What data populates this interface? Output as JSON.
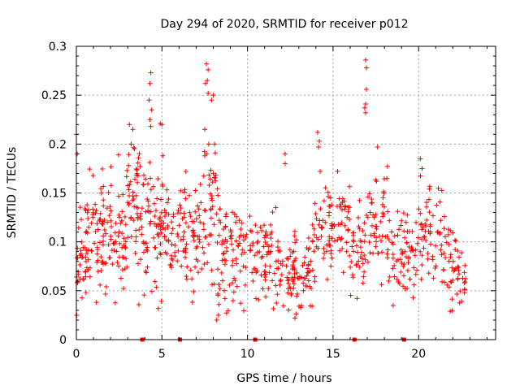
{
  "chart_data": {
    "type": "scatter",
    "title": "Day 294 of 2020, SRMTID for receiver p012",
    "xlabel": "GPS time / hours",
    "ylabel": "SRMTID / TECUs",
    "xlim": [
      0,
      24.5
    ],
    "ylim": [
      0,
      0.3
    ],
    "x_ticks": [
      0,
      5,
      10,
      15,
      20
    ],
    "x_tick_labels": [
      "0",
      "5",
      "10",
      "15",
      "20"
    ],
    "y_ticks": [
      0,
      0.05,
      0.1,
      0.15,
      0.2,
      0.25,
      0.3
    ],
    "y_tick_labels": [
      "0",
      "0.05",
      "0.1",
      "0.15",
      "0.2",
      "0.25",
      "0.3"
    ],
    "grid": true,
    "marker": "plus",
    "marker_color": "#ff0000",
    "baseline_markers_x": [
      3.85,
      6.05,
      10.45,
      16.25,
      19.15
    ],
    "seed": 294,
    "clusters": [
      {
        "t0": 0.0,
        "t1": 0.6,
        "center": 0.08,
        "spread": 0.035,
        "count": 30
      },
      {
        "t0": 0.5,
        "t1": 1.6,
        "center": 0.11,
        "spread": 0.04,
        "count": 60
      },
      {
        "t0": 1.5,
        "t1": 3.0,
        "center": 0.1,
        "spread": 0.035,
        "count": 70
      },
      {
        "t0": 2.9,
        "t1": 3.6,
        "center": 0.15,
        "spread": 0.04,
        "count": 35
      },
      {
        "t0": 3.5,
        "t1": 5.0,
        "center": 0.12,
        "spread": 0.04,
        "count": 80
      },
      {
        "t0": 4.9,
        "t1": 6.3,
        "center": 0.11,
        "spread": 0.035,
        "count": 60
      },
      {
        "t0": 6.3,
        "t1": 7.5,
        "center": 0.11,
        "spread": 0.04,
        "count": 55
      },
      {
        "t0": 7.4,
        "t1": 8.3,
        "center": 0.13,
        "spread": 0.05,
        "count": 40
      },
      {
        "t0": 8.2,
        "t1": 10.0,
        "center": 0.09,
        "spread": 0.035,
        "count": 80
      },
      {
        "t0": 10.0,
        "t1": 11.8,
        "center": 0.085,
        "spread": 0.03,
        "count": 75
      },
      {
        "t0": 11.8,
        "t1": 14.0,
        "center": 0.07,
        "spread": 0.025,
        "count": 90
      },
      {
        "t0": 13.8,
        "t1": 16.0,
        "center": 0.115,
        "spread": 0.035,
        "count": 90
      },
      {
        "t0": 16.0,
        "t1": 17.0,
        "center": 0.085,
        "spread": 0.03,
        "count": 40
      },
      {
        "t0": 17.0,
        "t1": 18.2,
        "center": 0.12,
        "spread": 0.035,
        "count": 50
      },
      {
        "t0": 18.2,
        "t1": 20.0,
        "center": 0.09,
        "spread": 0.03,
        "count": 70
      },
      {
        "t0": 20.0,
        "t1": 21.8,
        "center": 0.105,
        "spread": 0.035,
        "count": 70
      },
      {
        "t0": 21.8,
        "t1": 22.8,
        "center": 0.07,
        "spread": 0.03,
        "count": 40
      }
    ],
    "outliers": [
      {
        "x": 0.0,
        "y": 0.21
      },
      {
        "x": 0.05,
        "y": 0.19
      },
      {
        "x": 0.02,
        "y": 0.025
      },
      {
        "x": 3.1,
        "y": 0.22
      },
      {
        "x": 3.3,
        "y": 0.215
      },
      {
        "x": 3.2,
        "y": 0.2
      },
      {
        "x": 4.35,
        "y": 0.273
      },
      {
        "x": 4.3,
        "y": 0.262
      },
      {
        "x": 4.25,
        "y": 0.245
      },
      {
        "x": 4.4,
        "y": 0.235
      },
      {
        "x": 4.3,
        "y": 0.225
      },
      {
        "x": 4.35,
        "y": 0.218
      },
      {
        "x": 4.9,
        "y": 0.221
      },
      {
        "x": 5.0,
        "y": 0.22
      },
      {
        "x": 7.6,
        "y": 0.282
      },
      {
        "x": 7.7,
        "y": 0.276
      },
      {
        "x": 7.65,
        "y": 0.265
      },
      {
        "x": 7.55,
        "y": 0.262
      },
      {
        "x": 7.7,
        "y": 0.252
      },
      {
        "x": 8.0,
        "y": 0.25
      },
      {
        "x": 7.9,
        "y": 0.245
      },
      {
        "x": 7.5,
        "y": 0.215
      },
      {
        "x": 7.6,
        "y": 0.19
      },
      {
        "x": 7.5,
        "y": 0.188
      },
      {
        "x": 14.1,
        "y": 0.212
      },
      {
        "x": 14.2,
        "y": 0.203
      },
      {
        "x": 14.15,
        "y": 0.197
      },
      {
        "x": 16.9,
        "y": 0.286
      },
      {
        "x": 16.95,
        "y": 0.278
      },
      {
        "x": 16.95,
        "y": 0.256
      },
      {
        "x": 16.9,
        "y": 0.241
      },
      {
        "x": 16.85,
        "y": 0.237
      },
      {
        "x": 16.9,
        "y": 0.232
      },
      {
        "x": 17.6,
        "y": 0.197
      },
      {
        "x": 20.1,
        "y": 0.185
      },
      {
        "x": 20.2,
        "y": 0.175
      },
      {
        "x": 12.2,
        "y": 0.19
      },
      {
        "x": 12.2,
        "y": 0.18
      },
      {
        "x": 8.2,
        "y": 0.02
      },
      {
        "x": 8.3,
        "y": 0.025
      }
    ]
  }
}
